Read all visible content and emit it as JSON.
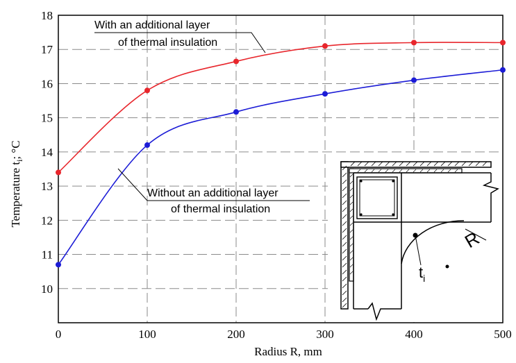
{
  "chart_data": {
    "type": "line",
    "xlabel": "Radius R, mm",
    "ylabel_main": "Temperature  t",
    "ylabel_sub": "i",
    "ylabel_unit": "; °C",
    "xlim": [
      0,
      500
    ],
    "ylim": [
      9,
      18
    ],
    "xticks": [
      0,
      100,
      200,
      300,
      400,
      500
    ],
    "yticks": [
      10,
      11,
      12,
      13,
      14,
      15,
      16,
      17,
      18
    ],
    "grid": true,
    "grid_style": "dashed",
    "series": [
      {
        "name": "With an additional layer of thermal insulation",
        "color": "#e8262c",
        "x": [
          0,
          100,
          200,
          300,
          400,
          500
        ],
        "y": [
          13.4,
          15.8,
          16.65,
          17.1,
          17.2,
          17.2
        ]
      },
      {
        "name": "Without an additional layer of thermal insulation",
        "color": "#1c1cd6",
        "x": [
          0,
          100,
          200,
          300,
          400,
          500
        ],
        "y": [
          10.7,
          14.2,
          15.17,
          15.7,
          16.1,
          16.4
        ]
      }
    ],
    "annotations": [
      {
        "line1": "With an additional layer",
        "line2": "of thermal insulation"
      },
      {
        "line1": "Without an additional layer",
        "line2": "of thermal insulation"
      }
    ],
    "inset": {
      "label_R": "R",
      "label_t": "t",
      "label_t_sub": "i"
    }
  }
}
